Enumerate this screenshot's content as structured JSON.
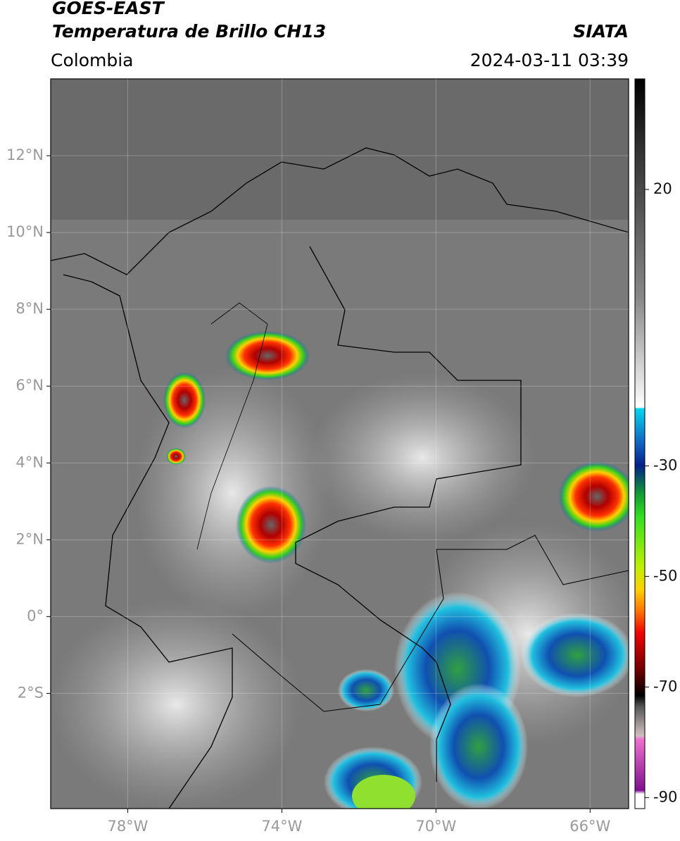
{
  "header": {
    "title": "GOES-EAST",
    "subtitle": "Temperatura de Brillo CH13",
    "region": "Colombia",
    "source": "SIATA",
    "datetime": "2024-03-11 03:39"
  },
  "map": {
    "xlim": [
      -80,
      -65
    ],
    "ylim": [
      -5,
      14
    ],
    "xticks": [
      {
        "value": -78,
        "label": "78°W"
      },
      {
        "value": -74,
        "label": "74°W"
      },
      {
        "value": -70,
        "label": "70°W"
      },
      {
        "value": -66,
        "label": "66°W"
      }
    ],
    "yticks": [
      {
        "value": 12,
        "label": "12°N"
      },
      {
        "value": 10,
        "label": "10°N"
      },
      {
        "value": 8,
        "label": "8°N"
      },
      {
        "value": 6,
        "label": "6°N"
      },
      {
        "value": 4,
        "label": "4°N"
      },
      {
        "value": 2,
        "label": "2°N"
      },
      {
        "value": 0,
        "label": "0°"
      },
      {
        "value": -2,
        "label": "2°S"
      }
    ]
  },
  "colorbar": {
    "lim": [
      -92,
      40
    ],
    "ticks": [
      20,
      -30,
      -50,
      -70,
      -90
    ]
  }
}
